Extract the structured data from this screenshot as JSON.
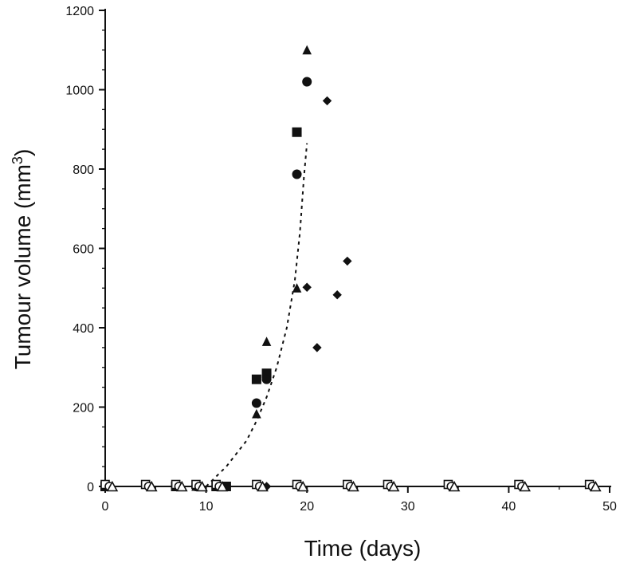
{
  "chart_data": {
    "type": "scatter",
    "title": "",
    "xlabel": "Time (days)",
    "ylabel_main": "Tumour volume (mm",
    "ylabel_superscript": "3",
    "ylabel_close": ")",
    "xlim": [
      0,
      50
    ],
    "ylim": [
      0,
      1200
    ],
    "x_ticks": [
      0,
      10,
      20,
      30,
      40,
      50
    ],
    "y_ticks": [
      0,
      200,
      400,
      600,
      800,
      1000,
      1200
    ],
    "x_tick_labels": [
      "0",
      "10",
      "20",
      "30",
      "40",
      "50"
    ],
    "y_tick_labels": [
      "0",
      "200",
      "400",
      "600",
      "800",
      "1000",
      "1200"
    ],
    "grid": false,
    "legend": "none",
    "series": [
      {
        "name": "filled-square",
        "marker": "square",
        "filled": true,
        "points": [
          {
            "x": 0,
            "y": 0
          },
          {
            "x": 7,
            "y": 0
          },
          {
            "x": 11,
            "y": 0
          },
          {
            "x": 12,
            "y": 0
          },
          {
            "x": 15,
            "y": 270
          },
          {
            "x": 16,
            "y": 285
          },
          {
            "x": 19,
            "y": 893
          }
        ]
      },
      {
        "name": "filled-circle",
        "marker": "circle",
        "filled": true,
        "points": [
          {
            "x": 0,
            "y": 0
          },
          {
            "x": 7,
            "y": 0
          },
          {
            "x": 9,
            "y": 0
          },
          {
            "x": 11,
            "y": 0
          },
          {
            "x": 15,
            "y": 210
          },
          {
            "x": 16,
            "y": 270
          },
          {
            "x": 19,
            "y": 787
          },
          {
            "x": 20,
            "y": 1020
          }
        ]
      },
      {
        "name": "filled-triangle",
        "marker": "triangle",
        "filled": true,
        "points": [
          {
            "x": 0,
            "y": 0
          },
          {
            "x": 7,
            "y": 0
          },
          {
            "x": 9,
            "y": 0
          },
          {
            "x": 11,
            "y": 0
          },
          {
            "x": 15,
            "y": 183
          },
          {
            "x": 16,
            "y": 365
          },
          {
            "x": 19,
            "y": 500
          },
          {
            "x": 20,
            "y": 1100
          }
        ]
      },
      {
        "name": "filled-diamond",
        "marker": "diamond",
        "filled": true,
        "points": [
          {
            "x": 0,
            "y": 0
          },
          {
            "x": 9,
            "y": 0
          },
          {
            "x": 11,
            "y": 0
          },
          {
            "x": 16,
            "y": 0
          },
          {
            "x": 20,
            "y": 502
          },
          {
            "x": 21,
            "y": 350
          },
          {
            "x": 22,
            "y": 972
          },
          {
            "x": 23,
            "y": 483
          },
          {
            "x": 24,
            "y": 568
          }
        ]
      },
      {
        "name": "open-square",
        "marker": "square",
        "filled": false,
        "points": [
          {
            "x": 0,
            "y": 5
          },
          {
            "x": 4,
            "y": 5
          },
          {
            "x": 7,
            "y": 5
          },
          {
            "x": 9,
            "y": 5
          },
          {
            "x": 11,
            "y": 5
          },
          {
            "x": 15,
            "y": 5
          },
          {
            "x": 19,
            "y": 5
          },
          {
            "x": 24,
            "y": 5
          },
          {
            "x": 28,
            "y": 5
          },
          {
            "x": 34,
            "y": 5
          },
          {
            "x": 41,
            "y": 5
          },
          {
            "x": 48,
            "y": 5
          }
        ]
      },
      {
        "name": "open-circle",
        "marker": "circle",
        "filled": false,
        "points": [
          {
            "x": 0.4,
            "y": 0
          },
          {
            "x": 4.3,
            "y": 0
          },
          {
            "x": 7.3,
            "y": 0
          },
          {
            "x": 9.3,
            "y": 0
          },
          {
            "x": 11.3,
            "y": 0
          },
          {
            "x": 15.3,
            "y": 0
          },
          {
            "x": 19.3,
            "y": 0
          },
          {
            "x": 24.3,
            "y": 0
          },
          {
            "x": 28.3,
            "y": 0
          },
          {
            "x": 34.3,
            "y": 0
          },
          {
            "x": 41.3,
            "y": 0
          },
          {
            "x": 48.3,
            "y": 0
          }
        ]
      },
      {
        "name": "open-triangle",
        "marker": "triangle",
        "filled": false,
        "points": [
          {
            "x": 0.7,
            "y": 0
          },
          {
            "x": 4.6,
            "y": 0
          },
          {
            "x": 7.6,
            "y": 0
          },
          {
            "x": 9.6,
            "y": 0
          },
          {
            "x": 11.6,
            "y": 0
          },
          {
            "x": 15.6,
            "y": 0
          },
          {
            "x": 19.6,
            "y": 0
          },
          {
            "x": 24.6,
            "y": 0
          },
          {
            "x": 28.6,
            "y": 0
          },
          {
            "x": 34.6,
            "y": 0
          },
          {
            "x": 41.6,
            "y": 0
          },
          {
            "x": 48.6,
            "y": 0
          }
        ]
      }
    ],
    "fit_curve": {
      "style": "dashed",
      "points": [
        {
          "x": 10,
          "y": 0
        },
        {
          "x": 12,
          "y": 50
        },
        {
          "x": 14,
          "y": 115
        },
        {
          "x": 15,
          "y": 165
        },
        {
          "x": 16,
          "y": 225
        },
        {
          "x": 17,
          "y": 300
        },
        {
          "x": 18,
          "y": 400
        },
        {
          "x": 18.8,
          "y": 520
        },
        {
          "x": 19.3,
          "y": 640
        },
        {
          "x": 19.7,
          "y": 780
        },
        {
          "x": 20,
          "y": 865
        }
      ]
    }
  }
}
